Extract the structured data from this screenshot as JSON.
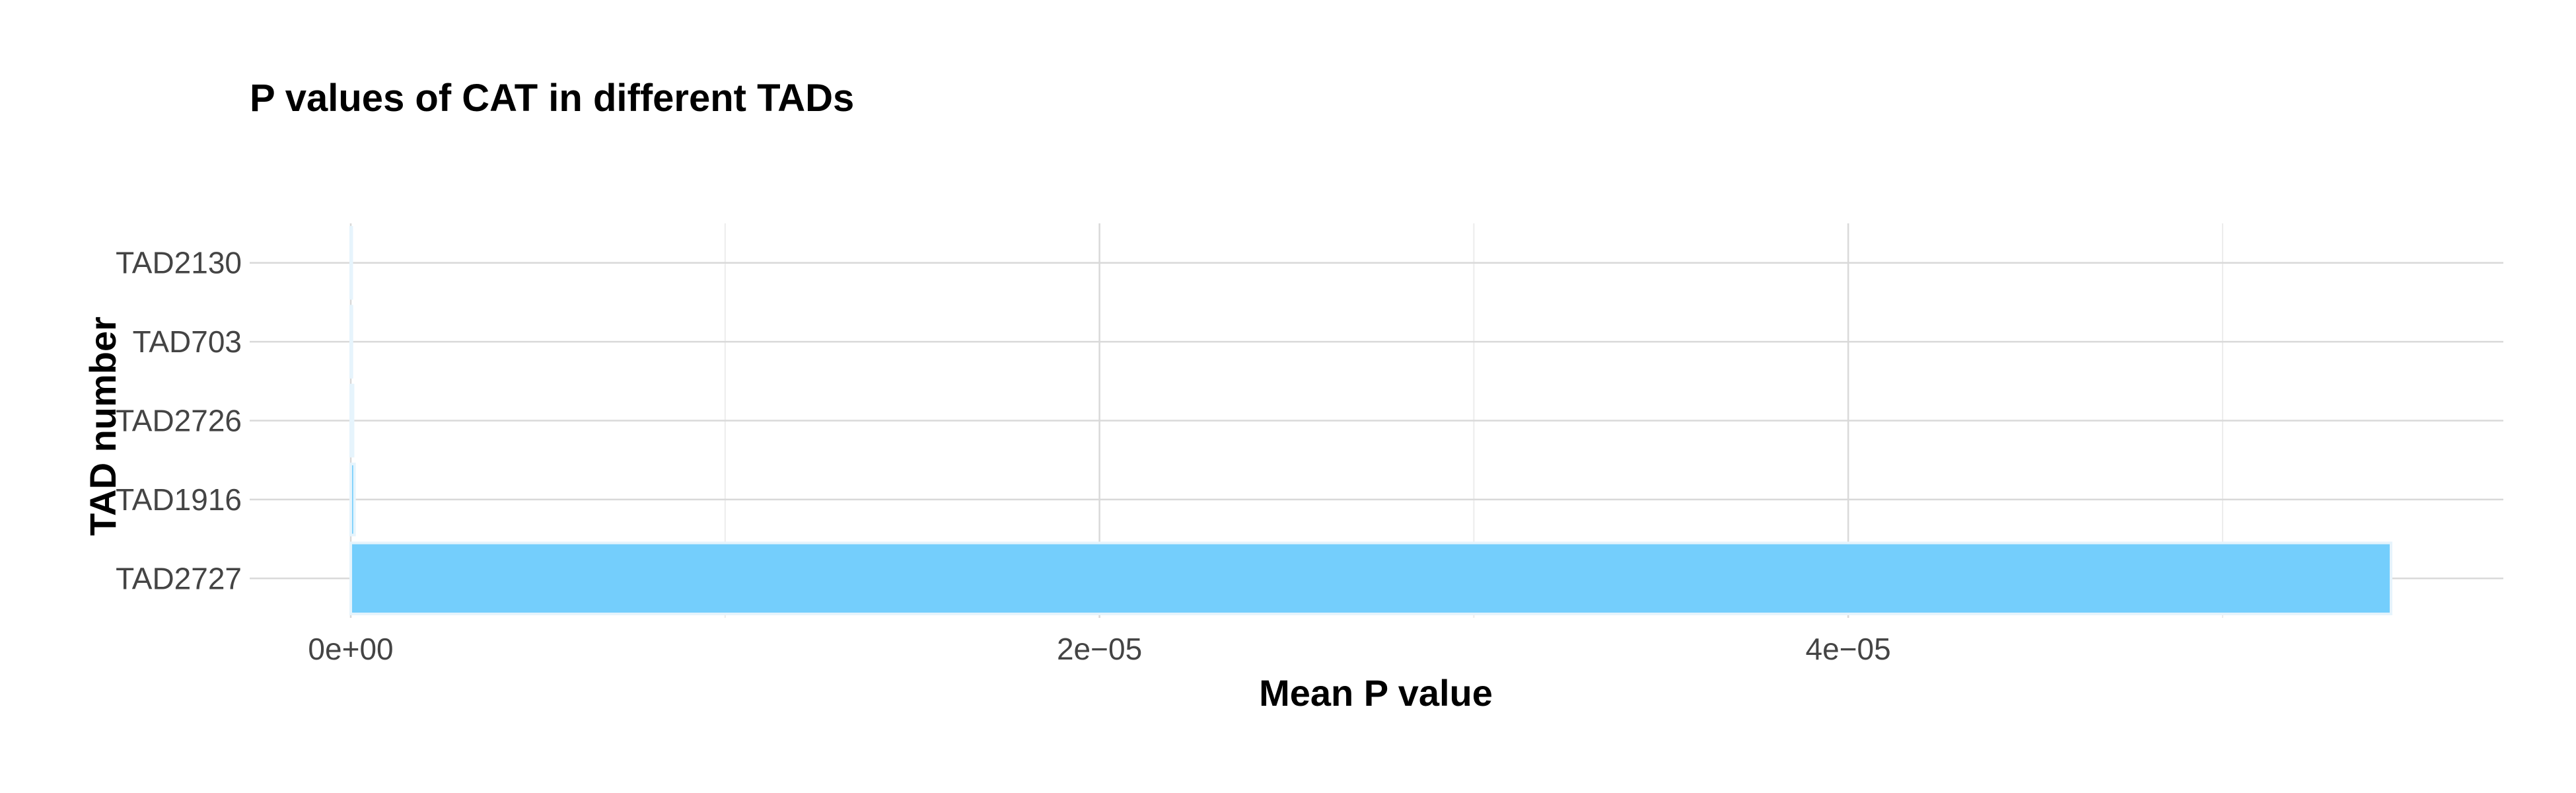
{
  "chart_data": {
    "type": "bar",
    "orientation": "horizontal",
    "title": "P values of CAT in different TADs",
    "xlabel": "Mean P value",
    "ylabel": "TAD number",
    "categories": [
      "TAD2727",
      "TAD1916",
      "TAD2726",
      "TAD703",
      "TAD2130"
    ],
    "values": [
      5.45e-05,
      1e-07,
      6e-08,
      3e-08,
      1e-08
    ],
    "xlim": [
      -2.7e-06,
      5.75e-05
    ],
    "x_ticks": [
      {
        "value": 0,
        "label": "0e+00"
      },
      {
        "value": 2e-05,
        "label": "2e−05"
      },
      {
        "value": 4e-05,
        "label": "4e−05"
      }
    ],
    "x_minor_ticks": [
      1e-05,
      3e-05,
      5e-05
    ],
    "grid": true,
    "bar_color": "#74cefc",
    "bar_outline": "#e6f4fc"
  }
}
